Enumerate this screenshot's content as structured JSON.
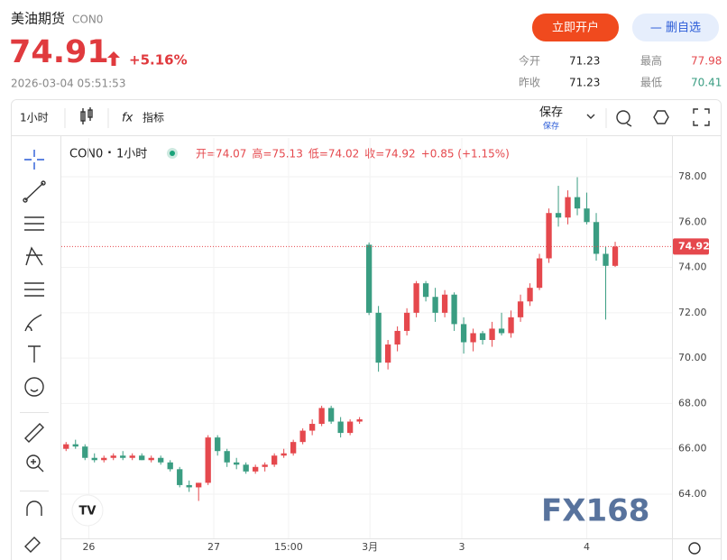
{
  "header": {
    "title": "美油期货",
    "code": "CON0",
    "price": "74.91",
    "change": "+5.16%",
    "datetime": "2026-03-04 05:51:53",
    "open_account": "立即开户",
    "remove_watch": "— 删自选",
    "stats": [
      [
        "今开",
        "71.23"
      ],
      [
        "最高",
        "77.98"
      ],
      [
        "昨收",
        "71.23"
      ],
      [
        "最低",
        "70.41"
      ]
    ]
  },
  "toolbar": {
    "interval": "1小时",
    "indicators": "指标",
    "save": "保存",
    "save_small": "保存"
  },
  "legend": {
    "symbol": "CON0",
    "dot": "·",
    "interval": "1小时",
    "ohlc": [
      "开=74.07",
      "高=75.13",
      "低=74.02",
      "收=74.92"
    ],
    "change": "+0.85 (+1.15%)"
  },
  "watermark": "FX168",
  "chart_data": {
    "type": "candlestick",
    "up_color": "#e5484d",
    "down_color": "#3a9d82",
    "x": [
      0,
      1,
      2,
      3,
      4,
      5,
      6,
      7,
      8,
      9,
      10,
      11,
      12,
      13,
      14,
      15,
      16,
      17,
      18,
      19,
      20,
      21,
      22,
      23,
      24,
      25,
      26,
      27,
      28,
      29,
      30,
      31,
      32,
      33,
      34,
      35,
      36,
      37,
      38,
      39,
      40,
      41,
      42,
      43,
      44,
      45,
      46,
      47,
      48,
      49,
      50,
      51,
      52,
      53,
      54,
      55,
      56,
      57,
      58
    ],
    "open": [
      66.0,
      66.2,
      66.1,
      65.6,
      65.5,
      65.6,
      65.7,
      65.6,
      65.7,
      65.5,
      65.6,
      65.4,
      65.1,
      64.4,
      64.3,
      64.5,
      66.5,
      65.9,
      65.4,
      65.3,
      65.0,
      65.2,
      65.3,
      65.7,
      65.8,
      66.3,
      66.8,
      67.1,
      67.8,
      67.2,
      66.7,
      67.2,
      75.0,
      72.0,
      69.8,
      70.6,
      71.2,
      72.0,
      73.3,
      72.7,
      72.0,
      72.8,
      71.5,
      70.7,
      71.1,
      70.8,
      71.3,
      71.1,
      71.8,
      72.5,
      73.1,
      74.4,
      76.4,
      76.2,
      77.1,
      76.6,
      76.0,
      74.6,
      74.07
    ],
    "high": [
      66.3,
      66.4,
      66.2,
      65.8,
      65.7,
      65.8,
      65.9,
      65.8,
      65.8,
      65.7,
      65.7,
      65.5,
      65.2,
      64.6,
      64.5,
      66.6,
      66.6,
      66.0,
      65.6,
      65.4,
      65.3,
      65.4,
      65.8,
      66.0,
      66.4,
      66.9,
      67.3,
      67.9,
      67.9,
      67.4,
      67.3,
      67.4,
      75.1,
      72.3,
      70.8,
      71.4,
      72.2,
      73.4,
      73.4,
      73.1,
      73.0,
      72.9,
      71.8,
      71.3,
      71.2,
      71.6,
      72.0,
      72.1,
      72.8,
      73.3,
      74.6,
      76.6,
      77.6,
      77.4,
      77.98,
      77.3,
      76.4,
      74.9,
      75.13
    ],
    "low": [
      65.9,
      66.0,
      65.5,
      65.4,
      65.4,
      65.5,
      65.5,
      65.5,
      65.5,
      65.4,
      65.3,
      65.0,
      64.3,
      64.1,
      63.7,
      64.4,
      65.7,
      65.2,
      65.1,
      64.9,
      64.9,
      65.0,
      65.2,
      65.6,
      65.7,
      66.2,
      66.6,
      67.0,
      67.1,
      66.5,
      66.6,
      67.1,
      71.9,
      69.4,
      69.5,
      70.3,
      71.0,
      71.8,
      72.5,
      71.6,
      71.8,
      71.2,
      70.2,
      70.3,
      70.6,
      70.5,
      71.0,
      70.9,
      71.6,
      72.3,
      73.0,
      74.2,
      75.8,
      75.9,
      76.3,
      75.9,
      74.3,
      71.7,
      74.02
    ],
    "close": [
      66.2,
      66.1,
      65.6,
      65.5,
      65.6,
      65.7,
      65.6,
      65.7,
      65.5,
      65.6,
      65.4,
      65.1,
      64.4,
      64.3,
      64.5,
      66.5,
      65.9,
      65.4,
      65.3,
      65.0,
      65.2,
      65.3,
      65.7,
      65.8,
      66.3,
      66.8,
      67.1,
      67.8,
      67.2,
      66.7,
      67.2,
      67.3,
      72.0,
      69.8,
      70.6,
      71.2,
      72.0,
      73.3,
      72.7,
      72.0,
      72.8,
      71.5,
      70.7,
      71.1,
      70.8,
      71.3,
      71.1,
      71.8,
      72.5,
      73.1,
      74.4,
      76.4,
      76.2,
      77.1,
      76.6,
      76.0,
      74.6,
      74.07,
      74.92
    ],
    "last_price": 74.92,
    "xlim": [
      -0.5,
      64
    ],
    "ylim": [
      62.05,
      79.71
    ],
    "xticks": [
      {
        "value": 2.4,
        "label": "26"
      },
      {
        "value": 15.6,
        "label": "27"
      },
      {
        "value": 23.5,
        "label": "15:00"
      },
      {
        "value": 32.1,
        "label": "3月"
      },
      {
        "value": 41.8,
        "label": "3"
      },
      {
        "value": 55.0,
        "label": "4"
      }
    ],
    "yticks": [
      {
        "value": 64,
        "label": "64.00"
      },
      {
        "value": 66,
        "label": "66.00"
      },
      {
        "value": 68,
        "label": "68.00"
      },
      {
        "value": 70,
        "label": "70.00"
      },
      {
        "value": 72,
        "label": "72.00"
      },
      {
        "value": 74,
        "label": "74.00"
      },
      {
        "value": 76,
        "label": "76.00"
      },
      {
        "value": 78,
        "label": "78.00"
      }
    ],
    "grid": true
  }
}
